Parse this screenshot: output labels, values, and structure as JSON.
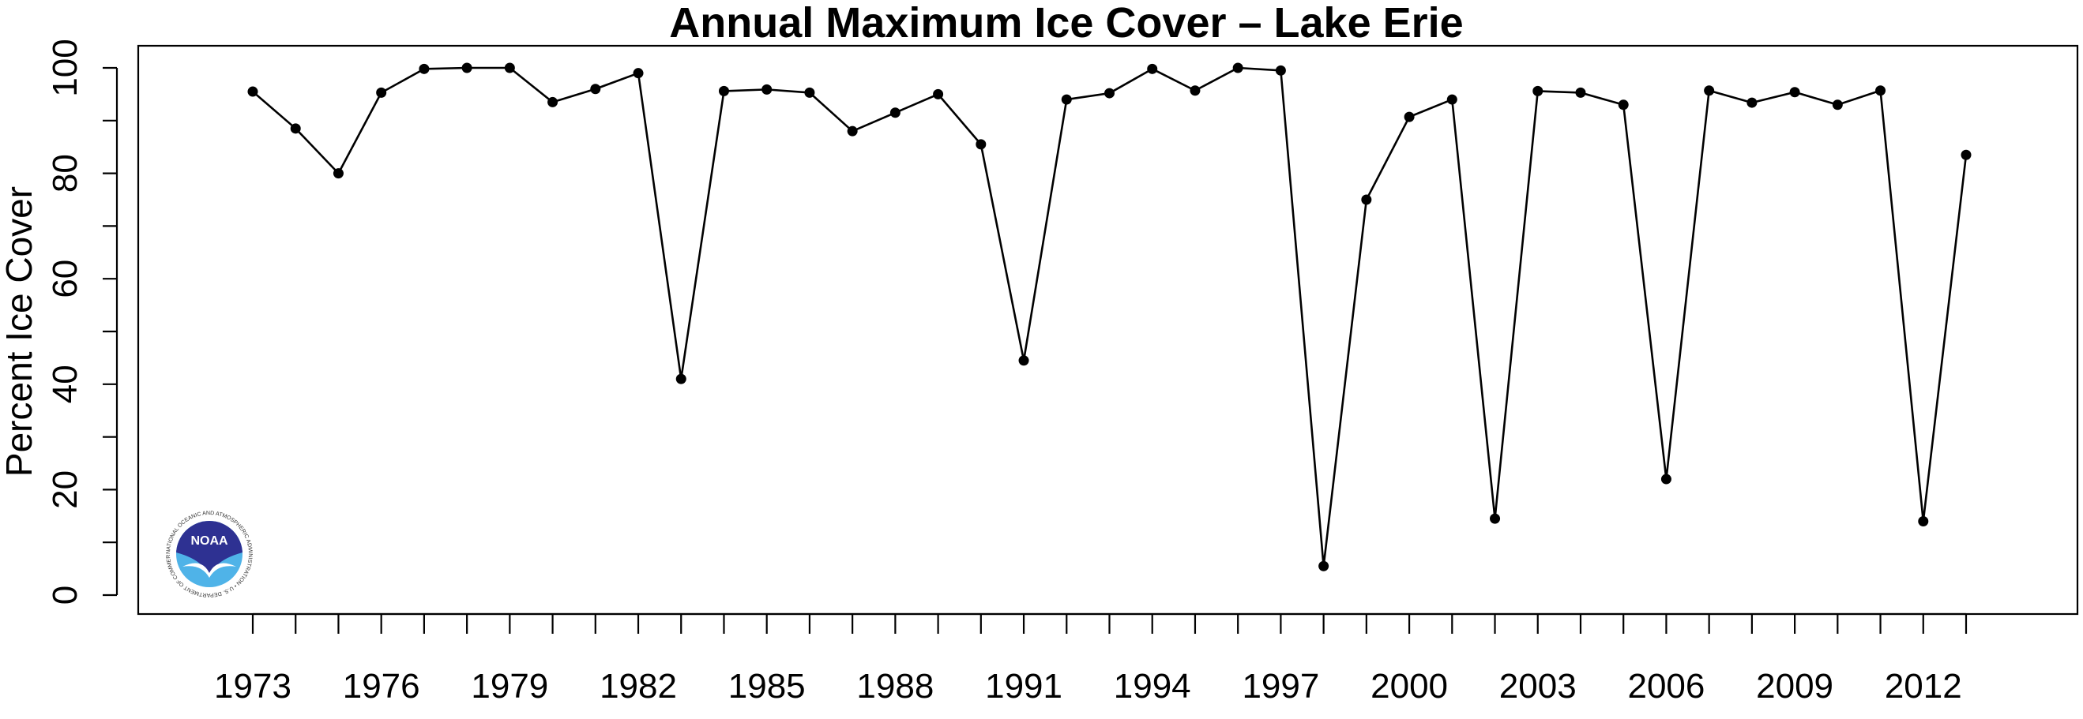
{
  "chart_data": {
    "type": "line",
    "title": "Annual Maximum Ice Cover – Lake Erie",
    "xlabel": "",
    "ylabel": "Percent Ice Cover",
    "x": [
      1973,
      1974,
      1975,
      1976,
      1977,
      1978,
      1979,
      1980,
      1981,
      1982,
      1983,
      1984,
      1985,
      1986,
      1987,
      1988,
      1989,
      1990,
      1991,
      1992,
      1993,
      1994,
      1995,
      1996,
      1997,
      1998,
      1999,
      2000,
      2001,
      2002,
      2003,
      2004,
      2005,
      2006,
      2007,
      2008,
      2009,
      2010,
      2011,
      2012,
      2013
    ],
    "values": [
      95.5,
      88.5,
      80.0,
      95.3,
      99.8,
      100.0,
      100.0,
      93.5,
      96.0,
      99.0,
      41.0,
      95.6,
      95.9,
      95.3,
      88.0,
      91.5,
      95.0,
      85.5,
      44.5,
      94.0,
      95.2,
      99.8,
      95.7,
      100.0,
      99.5,
      5.5,
      75.0,
      90.7,
      94.0,
      14.5,
      95.6,
      95.3,
      93.0,
      22.0,
      95.7,
      93.4,
      95.4,
      93.0,
      95.7,
      14.0,
      83.5
    ],
    "x_tick_labels": [
      "1973",
      "1976",
      "1979",
      "1982",
      "1985",
      "1988",
      "1991",
      "1994",
      "1997",
      "2000",
      "2003",
      "2006",
      "2009",
      "2012"
    ],
    "y_tick_labels": [
      "0",
      "20",
      "40",
      "60",
      "80",
      "100"
    ],
    "ylim": [
      0,
      100
    ],
    "grid": false,
    "logo_text": "NOAA",
    "logo_ring_text": "NATIONAL OCEANIC AND ATMOSPHERIC ADMINISTRATION • U.S. DEPARTMENT OF COMMERCE •",
    "colors": {
      "line": "#000000",
      "logo_dark": "#2e3192",
      "logo_light": "#4fb3e8"
    }
  }
}
